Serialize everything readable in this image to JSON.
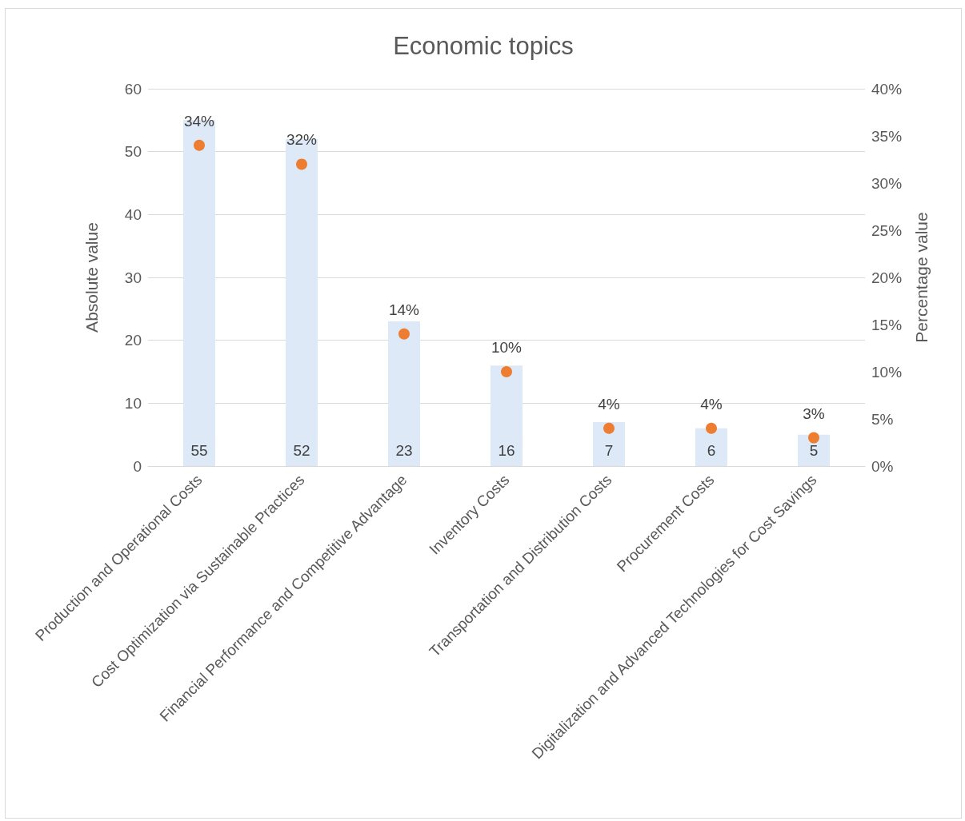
{
  "chart_data": {
    "type": "bar",
    "title": "Economic topics",
    "ylabel": "Absolute value",
    "y2label": "Percentage value",
    "categories": [
      "Production and Operational Costs",
      "Cost Optimization via Sustainable Practices",
      "Financial Performance and Competitive Advantage",
      "Inventory Costs",
      "Transportation and Distribution Costs",
      "Procurement Costs",
      "Digitalization and Advanced Technologies for Cost Savings"
    ],
    "series": [
      {
        "color": "#dde9f6",
        "values": [
          55,
          52,
          23,
          16,
          7,
          6,
          5
        ]
      },
      {
        "type": "scatter",
        "axis": "y2",
        "color": "#ed7d31",
        "x": [
          "Production and Operational Costs",
          "Cost Optimization via Sustainable Practices",
          "Financial Performance and Competitive Advantage",
          "Inventory Costs",
          "Transportation and Distribution Costs",
          "Procurement Costs",
          "Digitalization and Advanced Technologies for Cost Savings"
        ],
        "values": [
          34,
          32,
          14,
          10,
          4,
          4,
          3
        ],
        "value_labels": [
          "34%",
          "32%",
          "14%",
          "10%",
          "4%",
          "4%",
          "3%"
        ]
      }
    ],
    "data_labels": true,
    "marker": "circle",
    "grid": "y",
    "ylim": [
      0,
      60
    ],
    "yticks": [
      0,
      10,
      20,
      30,
      40,
      50,
      60
    ],
    "y2lim": [
      0,
      40
    ],
    "y2ticks": [
      {
        "value": 0,
        "label": "0%"
      },
      {
        "value": 5,
        "label": "5%"
      },
      {
        "value": 10,
        "label": "10%"
      },
      {
        "value": 15,
        "label": "15%"
      },
      {
        "value": 20,
        "label": "20%"
      },
      {
        "value": 25,
        "label": "25%"
      },
      {
        "value": 30,
        "label": "30%"
      },
      {
        "value": 35,
        "label": "35%"
      },
      {
        "value": 40,
        "label": "40%"
      }
    ]
  }
}
